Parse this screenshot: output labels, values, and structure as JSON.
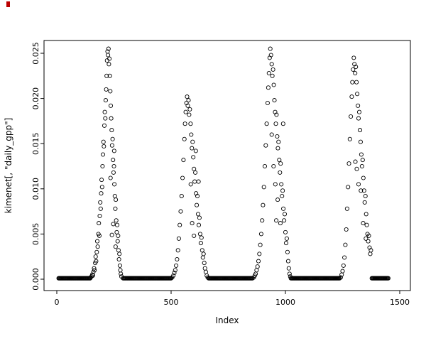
{
  "chart_data": {
    "type": "scatter",
    "title": "",
    "xlabel": "Index",
    "ylabel": "kimenet[, \"daily_gpp\"]",
    "marker": "open-circle",
    "point_color": "#000000",
    "background": "#ffffff",
    "legend": "none",
    "grid": false,
    "xlim": [
      -60,
      1560
    ],
    "ylim": [
      -0.001,
      0.0262
    ],
    "x_ticks": {
      "values": [
        0,
        500,
        1000,
        1500
      ],
      "labels": [
        "0",
        "500",
        "1000",
        "1500"
      ]
    },
    "y_ticks": {
      "values": [
        0,
        0.005,
        0.01,
        0.015,
        0.02,
        0.025
      ],
      "labels": [
        "0.000",
        "0.005",
        "0.010",
        "0.015",
        "0.020",
        "0.025"
      ]
    },
    "zero_run_step": 3,
    "zero_runs": [
      [
        8,
        146
      ],
      [
        290,
        502
      ],
      [
        664,
        858
      ],
      [
        1024,
        1238
      ],
      [
        1378,
        1452
      ]
    ],
    "points": [
      [
        148,
        0.0002
      ],
      [
        152,
        0.0003
      ],
      [
        155,
        0.0005
      ],
      [
        158,
        0.0004
      ],
      [
        160,
        0.0008
      ],
      [
        163,
        0.0012
      ],
      [
        165,
        0.001
      ],
      [
        168,
        0.0018
      ],
      [
        170,
        0.0025
      ],
      [
        172,
        0.002
      ],
      [
        175,
        0.003
      ],
      [
        177,
        0.0042
      ],
      [
        179,
        0.0036
      ],
      [
        182,
        0.005
      ],
      [
        184,
        0.0062
      ],
      [
        186,
        0.0048
      ],
      [
        188,
        0.007
      ],
      [
        190,
        0.0085
      ],
      [
        192,
        0.0078
      ],
      [
        194,
        0.0095
      ],
      [
        196,
        0.011
      ],
      [
        198,
        0.0102
      ],
      [
        200,
        0.0125
      ],
      [
        202,
        0.0138
      ],
      [
        204,
        0.0152
      ],
      [
        206,
        0.0147
      ],
      [
        208,
        0.017
      ],
      [
        210,
        0.0185
      ],
      [
        212,
        0.0178
      ],
      [
        214,
        0.0198
      ],
      [
        216,
        0.021
      ],
      [
        218,
        0.0225
      ],
      [
        220,
        0.0242
      ],
      [
        222,
        0.0252
      ],
      [
        224,
        0.0248
      ],
      [
        226,
        0.0255
      ],
      [
        228,
        0.0238
      ],
      [
        230,
        0.0244
      ],
      [
        232,
        0.0225
      ],
      [
        234,
        0.0208
      ],
      [
        235,
        0.0112
      ],
      [
        236,
        0.0192
      ],
      [
        238,
        0.0178
      ],
      [
        240,
        0.0165
      ],
      [
        241,
        0.0049
      ],
      [
        242,
        0.0148
      ],
      [
        244,
        0.0155
      ],
      [
        246,
        0.0132
      ],
      [
        247,
        0.0061
      ],
      [
        248,
        0.0118
      ],
      [
        250,
        0.0125
      ],
      [
        251,
        0.0142
      ],
      [
        252,
        0.0105
      ],
      [
        254,
        0.0092
      ],
      [
        256,
        0.0078
      ],
      [
        257,
        0.0036
      ],
      [
        258,
        0.0088
      ],
      [
        260,
        0.0065
      ],
      [
        262,
        0.0052
      ],
      [
        264,
        0.006
      ],
      [
        266,
        0.0042
      ],
      [
        268,
        0.0048
      ],
      [
        270,
        0.0032
      ],
      [
        272,
        0.0022
      ],
      [
        274,
        0.0028
      ],
      [
        276,
        0.0015
      ],
      [
        278,
        0.001
      ],
      [
        280,
        0.0006
      ],
      [
        283,
        0.0003
      ],
      [
        505,
        0.0002
      ],
      [
        510,
        0.0004
      ],
      [
        514,
        0.0007
      ],
      [
        518,
        0.001
      ],
      [
        522,
        0.0015
      ],
      [
        526,
        0.0022
      ],
      [
        530,
        0.0032
      ],
      [
        534,
        0.0045
      ],
      [
        538,
        0.006
      ],
      [
        542,
        0.0075
      ],
      [
        546,
        0.0092
      ],
      [
        550,
        0.0112
      ],
      [
        554,
        0.0132
      ],
      [
        558,
        0.0155
      ],
      [
        561,
        0.0172
      ],
      [
        564,
        0.0185
      ],
      [
        567,
        0.0195
      ],
      [
        570,
        0.0202
      ],
      [
        573,
        0.0192
      ],
      [
        576,
        0.0198
      ],
      [
        579,
        0.0182
      ],
      [
        582,
        0.0188
      ],
      [
        585,
        0.0172
      ],
      [
        586,
        0.0105
      ],
      [
        588,
        0.016
      ],
      [
        591,
        0.0145
      ],
      [
        592,
        0.0062
      ],
      [
        594,
        0.0152
      ],
      [
        597,
        0.0135
      ],
      [
        600,
        0.0122
      ],
      [
        600,
        0.0048
      ],
      [
        603,
        0.0108
      ],
      [
        606,
        0.0118
      ],
      [
        608,
        0.0142
      ],
      [
        609,
        0.0095
      ],
      [
        612,
        0.0082
      ],
      [
        615,
        0.0092
      ],
      [
        618,
        0.0072
      ],
      [
        620,
        0.0108
      ],
      [
        621,
        0.006
      ],
      [
        624,
        0.0068
      ],
      [
        627,
        0.005
      ],
      [
        630,
        0.004
      ],
      [
        633,
        0.0046
      ],
      [
        636,
        0.0032
      ],
      [
        639,
        0.0024
      ],
      [
        642,
        0.0028
      ],
      [
        645,
        0.0018
      ],
      [
        648,
        0.0012
      ],
      [
        652,
        0.0008
      ],
      [
        656,
        0.0004
      ],
      [
        660,
        0.0002
      ],
      [
        862,
        0.0002
      ],
      [
        866,
        0.0004
      ],
      [
        870,
        0.0006
      ],
      [
        874,
        0.001
      ],
      [
        878,
        0.0014
      ],
      [
        882,
        0.002
      ],
      [
        886,
        0.0028
      ],
      [
        890,
        0.0038
      ],
      [
        894,
        0.005
      ],
      [
        898,
        0.0065
      ],
      [
        902,
        0.0082
      ],
      [
        906,
        0.0102
      ],
      [
        910,
        0.0125
      ],
      [
        914,
        0.0148
      ],
      [
        918,
        0.0172
      ],
      [
        922,
        0.0195
      ],
      [
        925,
        0.0212
      ],
      [
        928,
        0.0228
      ],
      [
        931,
        0.0245
      ],
      [
        934,
        0.0255
      ],
      [
        937,
        0.0248
      ],
      [
        940,
        0.0238
      ],
      [
        940,
        0.016
      ],
      [
        943,
        0.0225
      ],
      [
        946,
        0.0232
      ],
      [
        948,
        0.0125
      ],
      [
        949,
        0.0215
      ],
      [
        952,
        0.0198
      ],
      [
        955,
        0.0185
      ],
      [
        956,
        0.0105
      ],
      [
        958,
        0.0172
      ],
      [
        960,
        0.0065
      ],
      [
        961,
        0.0182
      ],
      [
        964,
        0.0158
      ],
      [
        966,
        0.0088
      ],
      [
        967,
        0.0145
      ],
      [
        970,
        0.0152
      ],
      [
        973,
        0.0132
      ],
      [
        976,
        0.0118
      ],
      [
        978,
        0.0062
      ],
      [
        979,
        0.0128
      ],
      [
        982,
        0.0105
      ],
      [
        985,
        0.0092
      ],
      [
        988,
        0.0098
      ],
      [
        990,
        0.0172
      ],
      [
        991,
        0.0078
      ],
      [
        994,
        0.0065
      ],
      [
        997,
        0.0072
      ],
      [
        1000,
        0.0052
      ],
      [
        1003,
        0.004
      ],
      [
        1006,
        0.0045
      ],
      [
        1009,
        0.003
      ],
      [
        1012,
        0.002
      ],
      [
        1015,
        0.0012
      ],
      [
        1018,
        0.0006
      ],
      [
        1021,
        0.0003
      ],
      [
        1242,
        0.0002
      ],
      [
        1246,
        0.0005
      ],
      [
        1250,
        0.0009
      ],
      [
        1254,
        0.0015
      ],
      [
        1258,
        0.0024
      ],
      [
        1262,
        0.0038
      ],
      [
        1266,
        0.0055
      ],
      [
        1270,
        0.0078
      ],
      [
        1274,
        0.0102
      ],
      [
        1278,
        0.0128
      ],
      [
        1282,
        0.0155
      ],
      [
        1286,
        0.018
      ],
      [
        1290,
        0.0202
      ],
      [
        1293,
        0.0218
      ],
      [
        1296,
        0.0232
      ],
      [
        1299,
        0.0245
      ],
      [
        1302,
        0.0238
      ],
      [
        1305,
        0.0228
      ],
      [
        1306,
        0.013
      ],
      [
        1308,
        0.0235
      ],
      [
        1311,
        0.0218
      ],
      [
        1312,
        0.0122
      ],
      [
        1314,
        0.0205
      ],
      [
        1317,
        0.0192
      ],
      [
        1320,
        0.0178
      ],
      [
        1320,
        0.0105
      ],
      [
        1323,
        0.0185
      ],
      [
        1326,
        0.0165
      ],
      [
        1329,
        0.0152
      ],
      [
        1330,
        0.0098
      ],
      [
        1332,
        0.0138
      ],
      [
        1335,
        0.0125
      ],
      [
        1338,
        0.0132
      ],
      [
        1340,
        0.0062
      ],
      [
        1341,
        0.0112
      ],
      [
        1344,
        0.0098
      ],
      [
        1347,
        0.0085
      ],
      [
        1350,
        0.0092
      ],
      [
        1352,
        0.0045
      ],
      [
        1353,
        0.0072
      ],
      [
        1356,
        0.006
      ],
      [
        1359,
        0.005
      ],
      [
        1362,
        0.0042
      ],
      [
        1365,
        0.0048
      ],
      [
        1368,
        0.0035
      ],
      [
        1371,
        0.0028
      ],
      [
        1374,
        0.0032
      ]
    ]
  }
}
